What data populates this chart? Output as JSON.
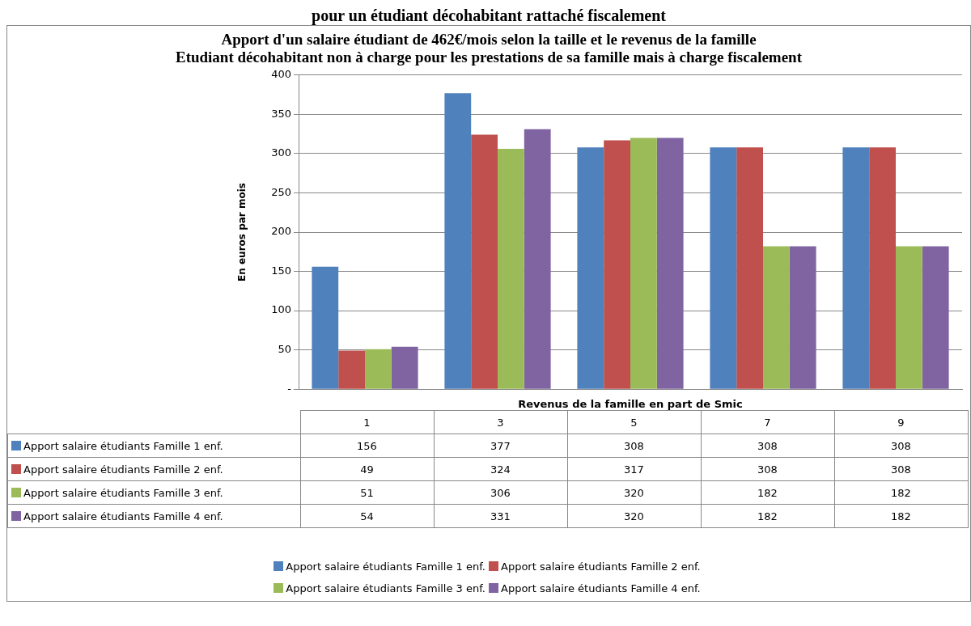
{
  "chart_data": {
    "type": "bar",
    "title": "Apport d'un salaire étudiant de 462€/mois selon la taille et le revenus de la famille",
    "subtitle": "Etudiant décohabitant non à charge pour les prestations de sa famille mais à charge fiscalement",
    "annotations": [
      "pour un étudiant décohabitant rattaché fiscalement"
    ],
    "xlabel": "Revenus de la famille en part de Smic",
    "ylabel": "En euros par mois",
    "categories": [
      "1",
      "3",
      "5",
      "7",
      "9"
    ],
    "series": [
      {
        "name": "Apport salaire étudiants  Famille 1 enf.",
        "color": "#4f81bd",
        "values": [
          156,
          377,
          308,
          308,
          308
        ]
      },
      {
        "name": "Apport salaire étudiants  Famille 2 enf.",
        "color": "#c0504d",
        "values": [
          49,
          324,
          317,
          308,
          308
        ]
      },
      {
        "name": "Apport salaire étudiants  Famille 3 enf.",
        "color": "#9bbb59",
        "values": [
          51,
          306,
          320,
          182,
          182
        ]
      },
      {
        "name": "Apport salaire étudiants  Famille 4 enf.",
        "color": "#8064a2",
        "values": [
          54,
          331,
          320,
          182,
          182
        ]
      }
    ],
    "ylim": [
      0,
      400
    ],
    "yticks": [
      {
        "value": 0,
        "label": "-"
      },
      50,
      100,
      150,
      200,
      250,
      300,
      350,
      400
    ],
    "grid": "y",
    "data_labels": true,
    "legend": "bottom"
  }
}
